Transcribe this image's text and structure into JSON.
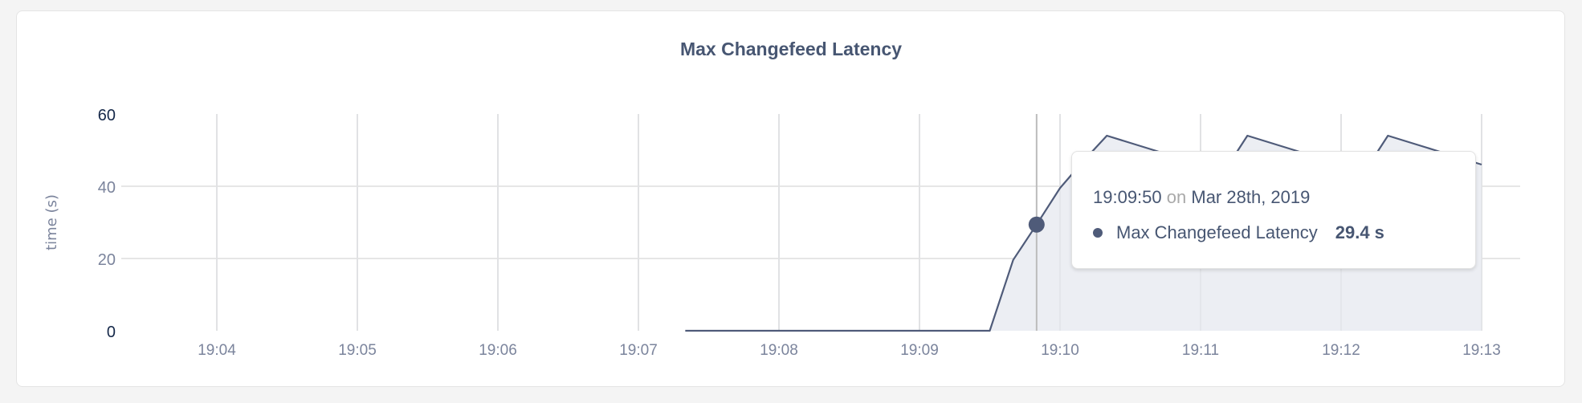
{
  "chart_data": {
    "type": "area",
    "title": "Max Changefeed Latency",
    "ylabel": "time (s)",
    "xlabel": "",
    "ylim": [
      0,
      60
    ],
    "yticks": [
      0,
      20,
      40,
      60
    ],
    "xlim": [
      "19:03:20",
      "19:13:15"
    ],
    "xticks": [
      "19:04",
      "19:05",
      "19:06",
      "19:07",
      "19:08",
      "19:09",
      "19:10",
      "19:11",
      "19:12",
      "19:13"
    ],
    "grid": true,
    "colors": {
      "line": "#4f5b79",
      "fill": "#eceef3",
      "grid": "#e6e6e6"
    },
    "series": [
      {
        "name": "Max Changefeed Latency",
        "x": [
          "19:07:20",
          "19:09:30",
          "19:09:40",
          "19:09:50",
          "19:10:00",
          "19:10:10",
          "19:10:20",
          "19:10:30",
          "19:10:40",
          "19:10:50",
          "19:11:00",
          "19:11:10",
          "19:11:20",
          "19:11:30",
          "19:11:40",
          "19:11:50",
          "19:12:00",
          "19:12:10",
          "19:12:20",
          "19:12:30",
          "19:12:40",
          "19:12:50",
          "19:13:00"
        ],
        "y": [
          0,
          0,
          19.6,
          29.4,
          39.5,
          47,
          54,
          52,
          50,
          48,
          46,
          44,
          54,
          52,
          50,
          48,
          46,
          44,
          54,
          52,
          50,
          48,
          46
        ]
      }
    ],
    "hover": {
      "x": "19:09:50",
      "y": 29.4
    }
  },
  "tooltip": {
    "time": "19:09:50",
    "on": "on",
    "date": "Mar 28th, 2019",
    "series_label": "Max Changefeed Latency",
    "value": "29.4 s"
  }
}
